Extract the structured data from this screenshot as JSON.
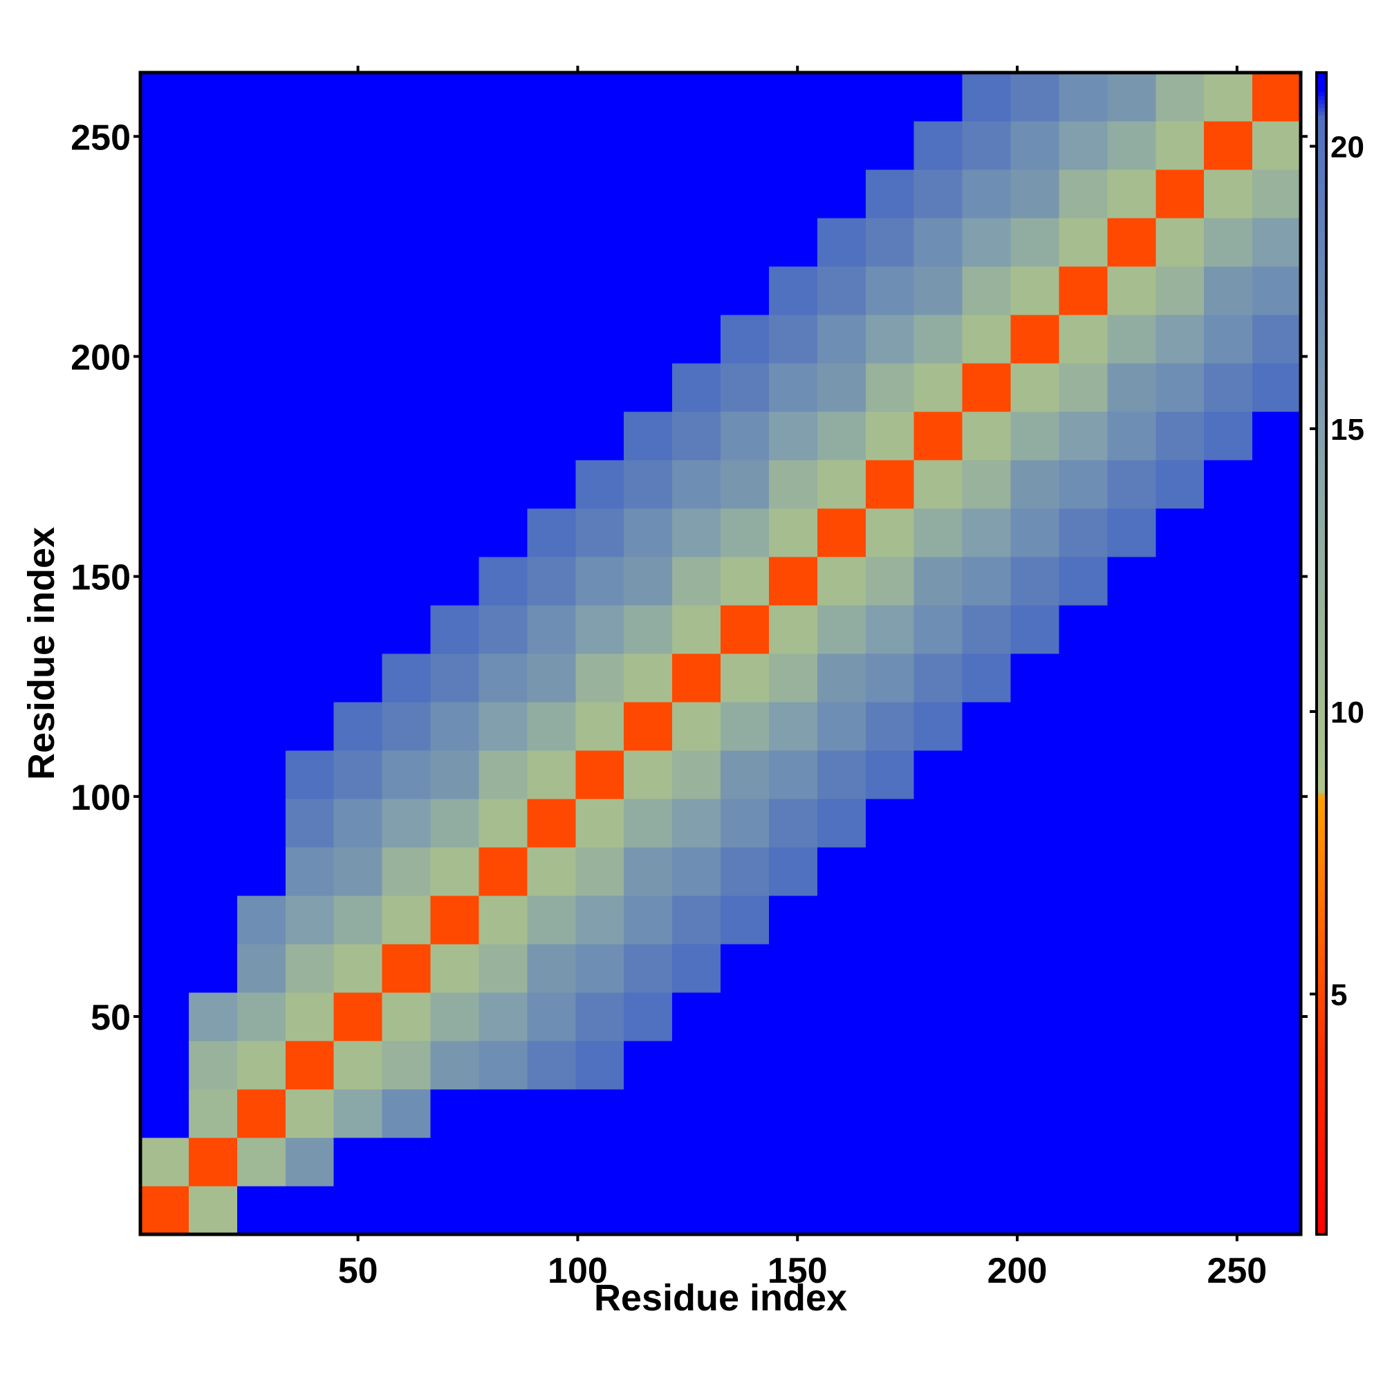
{
  "chart_data": {
    "type": "heatmap",
    "xlabel": "Residue index",
    "ylabel": "Residue index",
    "xlim": [
      0.5,
      264.5
    ],
    "ylim": [
      0.5,
      264.5
    ],
    "xticks": [
      50,
      100,
      150,
      200,
      250
    ],
    "yticks": [
      50,
      100,
      150,
      200,
      250
    ],
    "bins": [
      0.5,
      11.5,
      22.5,
      33.5,
      44.5,
      55.5,
      66.5,
      77.5,
      88.5,
      99.5,
      110.5,
      121.5,
      132.5,
      143.5,
      154.5,
      165.5,
      176.5,
      187.5,
      198.5,
      209.5,
      220.5,
      231.5,
      242.5,
      253.5,
      264.5
    ],
    "zlim": [
      0.75,
      21.3
    ],
    "zticks": [
      5,
      10,
      15,
      20
    ],
    "colorscale": [
      [
        0.75,
        "#ff0000"
      ],
      [
        4,
        "#ff3000"
      ],
      [
        8.5,
        "#ffa000"
      ],
      [
        8.6,
        "#b0c488"
      ],
      [
        14,
        "#8aa8a8"
      ],
      [
        20.5,
        "#5070c0"
      ],
      [
        21,
        "#0000ff"
      ],
      [
        21.3,
        "#0000ff"
      ]
    ],
    "z": [
      [
        5,
        10,
        22,
        22,
        22,
        22,
        22,
        22,
        22,
        22,
        22,
        22,
        22,
        22,
        22,
        22,
        22,
        22,
        22,
        22,
        22,
        22,
        22,
        22
      ],
      [
        10,
        5,
        11,
        16,
        22,
        22,
        22,
        22,
        22,
        22,
        22,
        22,
        22,
        22,
        22,
        22,
        22,
        22,
        22,
        22,
        22,
        22,
        22,
        22
      ],
      [
        22,
        11,
        5,
        10,
        14,
        17,
        22,
        22,
        22,
        22,
        22,
        22,
        22,
        22,
        22,
        22,
        22,
        22,
        22,
        22,
        22,
        22,
        22,
        22
      ],
      [
        22,
        12,
        10,
        5,
        10,
        12,
        16,
        17,
        19,
        20.5,
        22,
        22,
        22,
        22,
        22,
        22,
        22,
        22,
        22,
        22,
        22,
        22,
        22,
        22
      ],
      [
        22,
        15,
        13,
        10,
        5,
        10,
        13,
        15,
        17,
        19,
        20.5,
        22,
        22,
        22,
        22,
        22,
        22,
        22,
        22,
        22,
        22,
        22,
        22,
        22
      ],
      [
        22,
        22,
        16,
        12,
        10,
        5,
        10,
        12,
        16,
        17,
        19,
        20.5,
        22,
        22,
        22,
        22,
        22,
        22,
        22,
        22,
        22,
        22,
        22,
        22
      ],
      [
        22,
        22,
        17,
        15,
        13,
        10,
        5,
        10,
        13,
        15,
        17,
        19,
        20.5,
        22,
        22,
        22,
        22,
        22,
        22,
        22,
        22,
        22,
        22,
        22
      ],
      [
        22,
        22,
        22,
        17,
        16,
        12,
        10,
        5,
        10,
        12,
        16,
        17,
        19,
        20.5,
        22,
        22,
        22,
        22,
        22,
        22,
        22,
        22,
        22,
        22
      ],
      [
        22,
        22,
        22,
        19,
        17,
        15,
        13,
        10,
        5,
        10,
        13,
        15,
        17,
        19,
        20.5,
        22,
        22,
        22,
        22,
        22,
        22,
        22,
        22,
        22
      ],
      [
        22,
        22,
        22,
        20.5,
        19,
        17,
        16,
        12,
        10,
        5,
        10,
        12,
        16,
        17,
        19,
        20.5,
        22,
        22,
        22,
        22,
        22,
        22,
        22,
        22
      ],
      [
        22,
        22,
        22,
        22,
        20.5,
        19,
        17,
        15,
        13,
        10,
        5,
        10,
        13,
        15,
        17,
        19,
        20.5,
        22,
        22,
        22,
        22,
        22,
        22,
        22
      ],
      [
        22,
        22,
        22,
        22,
        22,
        20.5,
        19,
        17,
        16,
        12,
        10,
        5,
        10,
        12,
        16,
        17,
        19,
        20.5,
        22,
        22,
        22,
        22,
        22,
        22
      ],
      [
        22,
        22,
        22,
        22,
        22,
        22,
        20.5,
        19,
        17,
        15,
        13,
        10,
        5,
        10,
        13,
        15,
        17,
        19,
        20.5,
        22,
        22,
        22,
        22,
        22
      ],
      [
        22,
        22,
        22,
        22,
        22,
        22,
        22,
        20.5,
        19,
        17,
        16,
        12,
        10,
        5,
        10,
        12,
        16,
        17,
        19,
        20.5,
        22,
        22,
        22,
        22
      ],
      [
        22,
        22,
        22,
        22,
        22,
        22,
        22,
        22,
        20.5,
        19,
        17,
        15,
        13,
        10,
        5,
        10,
        13,
        15,
        17,
        19,
        20.5,
        22,
        22,
        22
      ],
      [
        22,
        22,
        22,
        22,
        22,
        22,
        22,
        22,
        22,
        20.5,
        19,
        17,
        16,
        12,
        10,
        5,
        10,
        12,
        16,
        17,
        19,
        20.5,
        22,
        22
      ],
      [
        22,
        22,
        22,
        22,
        22,
        22,
        22,
        22,
        22,
        22,
        20.5,
        19,
        17,
        15,
        13,
        10,
        5,
        10,
        13,
        15,
        17,
        19,
        20.5,
        22
      ],
      [
        22,
        22,
        22,
        22,
        22,
        22,
        22,
        22,
        22,
        22,
        22,
        20.5,
        19,
        17,
        16,
        12,
        10,
        5,
        10,
        12,
        16,
        17,
        19,
        20.5
      ],
      [
        22,
        22,
        22,
        22,
        22,
        22,
        22,
        22,
        22,
        22,
        22,
        22,
        20.5,
        19,
        17,
        15,
        13,
        10,
        5,
        10,
        13,
        15,
        17,
        19
      ],
      [
        22,
        22,
        22,
        22,
        22,
        22,
        22,
        22,
        22,
        22,
        22,
        22,
        22,
        20.5,
        19,
        17,
        16,
        12,
        10,
        5,
        10,
        12,
        16,
        17
      ],
      [
        22,
        22,
        22,
        22,
        22,
        22,
        22,
        22,
        22,
        22,
        22,
        22,
        22,
        22,
        20.5,
        19,
        17,
        15,
        13,
        10,
        5,
        10,
        13,
        15
      ],
      [
        22,
        22,
        22,
        22,
        22,
        22,
        22,
        22,
        22,
        22,
        22,
        22,
        22,
        22,
        22,
        20.5,
        19,
        17,
        16,
        12,
        10,
        5,
        10,
        12
      ],
      [
        22,
        22,
        22,
        22,
        22,
        22,
        22,
        22,
        22,
        22,
        22,
        22,
        22,
        22,
        22,
        22,
        20.5,
        19,
        17,
        15,
        13,
        10,
        5,
        10
      ],
      [
        22,
        22,
        22,
        22,
        22,
        22,
        22,
        22,
        22,
        22,
        22,
        22,
        22,
        22,
        22,
        22,
        22,
        20.5,
        19,
        17,
        16,
        12,
        10,
        5
      ]
    ]
  }
}
